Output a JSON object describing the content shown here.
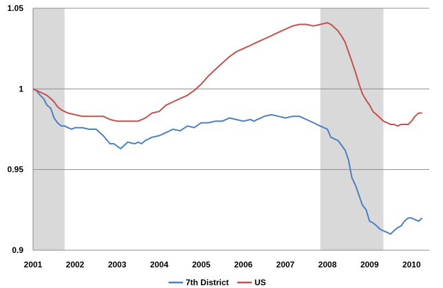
{
  "chart_data": {
    "type": "line",
    "title": "",
    "xlabel": "",
    "ylabel": "",
    "x_ticks": [
      "2001",
      "2002",
      "2003",
      "2004",
      "2005",
      "2006",
      "2007",
      "2008",
      "2009",
      "2010"
    ],
    "y_ticks": [
      "0.9",
      "0.95",
      "1",
      "1.05"
    ],
    "ylim": [
      0.9,
      1.05
    ],
    "xlim": [
      2001.0,
      2010.42
    ],
    "grid": "horizontal",
    "legend_position": "bottom",
    "recessions": [
      [
        2001.0,
        2001.75
      ],
      [
        2007.83,
        2009.33
      ]
    ],
    "series": [
      {
        "name": "7th District",
        "color": "#4a7ebf",
        "x": [
          2001.0,
          2001.08,
          2001.17,
          2001.25,
          2001.33,
          2001.42,
          2001.5,
          2001.58,
          2001.67,
          2001.75,
          2001.83,
          2001.92,
          2002.0,
          2002.17,
          2002.33,
          2002.5,
          2002.67,
          2002.83,
          2002.92,
          2003.08,
          2003.17,
          2003.25,
          2003.42,
          2003.5,
          2003.58,
          2003.67,
          2003.75,
          2003.83,
          2004.0,
          2004.17,
          2004.33,
          2004.5,
          2004.67,
          2004.83,
          2005.0,
          2005.17,
          2005.33,
          2005.5,
          2005.67,
          2005.83,
          2006.0,
          2006.17,
          2006.25,
          2006.33,
          2006.42,
          2006.5,
          2006.67,
          2006.83,
          2007.0,
          2007.17,
          2007.33,
          2007.5,
          2007.67,
          2007.83,
          2008.0,
          2008.08,
          2008.25,
          2008.42,
          2008.5,
          2008.58,
          2008.67,
          2008.75,
          2008.83,
          2008.92,
          2009.0,
          2009.08,
          2009.17,
          2009.25,
          2009.33,
          2009.42,
          2009.5,
          2009.58,
          2009.67,
          2009.75,
          2009.83,
          2009.92,
          2010.0,
          2010.08,
          2010.17,
          2010.25
        ],
        "y": [
          1.0,
          0.999,
          0.996,
          0.994,
          0.99,
          0.988,
          0.982,
          0.979,
          0.977,
          0.977,
          0.976,
          0.975,
          0.976,
          0.976,
          0.975,
          0.975,
          0.971,
          0.966,
          0.966,
          0.963,
          0.965,
          0.967,
          0.966,
          0.967,
          0.966,
          0.968,
          0.969,
          0.97,
          0.971,
          0.973,
          0.975,
          0.974,
          0.977,
          0.976,
          0.979,
          0.979,
          0.98,
          0.98,
          0.982,
          0.981,
          0.98,
          0.981,
          0.98,
          0.981,
          0.982,
          0.983,
          0.984,
          0.983,
          0.982,
          0.983,
          0.983,
          0.981,
          0.979,
          0.977,
          0.975,
          0.97,
          0.968,
          0.962,
          0.956,
          0.945,
          0.94,
          0.934,
          0.928,
          0.925,
          0.918,
          0.917,
          0.915,
          0.913,
          0.912,
          0.911,
          0.91,
          0.912,
          0.914,
          0.915,
          0.918,
          0.92,
          0.92,
          0.919,
          0.918,
          0.92
        ],
        "note": ""
      },
      {
        "name": "US",
        "color": "#c0504d",
        "x": [
          2001.0,
          2001.08,
          2001.17,
          2001.25,
          2001.33,
          2001.42,
          2001.5,
          2001.58,
          2001.67,
          2001.75,
          2001.83,
          2002.0,
          2002.17,
          2002.33,
          2002.5,
          2002.67,
          2002.83,
          2003.0,
          2003.17,
          2003.33,
          2003.5,
          2003.67,
          2003.83,
          2004.0,
          2004.08,
          2004.17,
          2004.25,
          2004.33,
          2004.5,
          2004.67,
          2004.83,
          2005.0,
          2005.17,
          2005.33,
          2005.5,
          2005.67,
          2005.83,
          2006.0,
          2006.17,
          2006.33,
          2006.5,
          2006.67,
          2006.83,
          2007.0,
          2007.17,
          2007.33,
          2007.5,
          2007.67,
          2007.83,
          2008.0,
          2008.08,
          2008.17,
          2008.25,
          2008.33,
          2008.42,
          2008.5,
          2008.58,
          2008.67,
          2008.75,
          2008.83,
          2008.92,
          2009.0,
          2009.08,
          2009.17,
          2009.25,
          2009.33,
          2009.42,
          2009.5,
          2009.58,
          2009.67,
          2009.75,
          2009.83,
          2009.92,
          2010.0,
          2010.08,
          2010.17,
          2010.25
        ],
        "y": [
          1.0,
          0.999,
          0.998,
          0.997,
          0.996,
          0.994,
          0.992,
          0.989,
          0.987,
          0.986,
          0.985,
          0.984,
          0.983,
          0.983,
          0.983,
          0.983,
          0.981,
          0.98,
          0.98,
          0.98,
          0.98,
          0.982,
          0.985,
          0.986,
          0.988,
          0.99,
          0.991,
          0.992,
          0.994,
          0.996,
          0.999,
          1.003,
          1.008,
          1.012,
          1.016,
          1.02,
          1.023,
          1.025,
          1.027,
          1.029,
          1.031,
          1.033,
          1.035,
          1.037,
          1.039,
          1.04,
          1.04,
          1.039,
          1.04,
          1.041,
          1.04,
          1.038,
          1.036,
          1.033,
          1.029,
          1.023,
          1.017,
          1.01,
          1.003,
          0.997,
          0.993,
          0.99,
          0.986,
          0.984,
          0.982,
          0.98,
          0.979,
          0.978,
          0.978,
          0.977,
          0.978,
          0.978,
          0.978,
          0.98,
          0.983,
          0.985,
          0.985
        ],
        "note": ""
      }
    ]
  }
}
